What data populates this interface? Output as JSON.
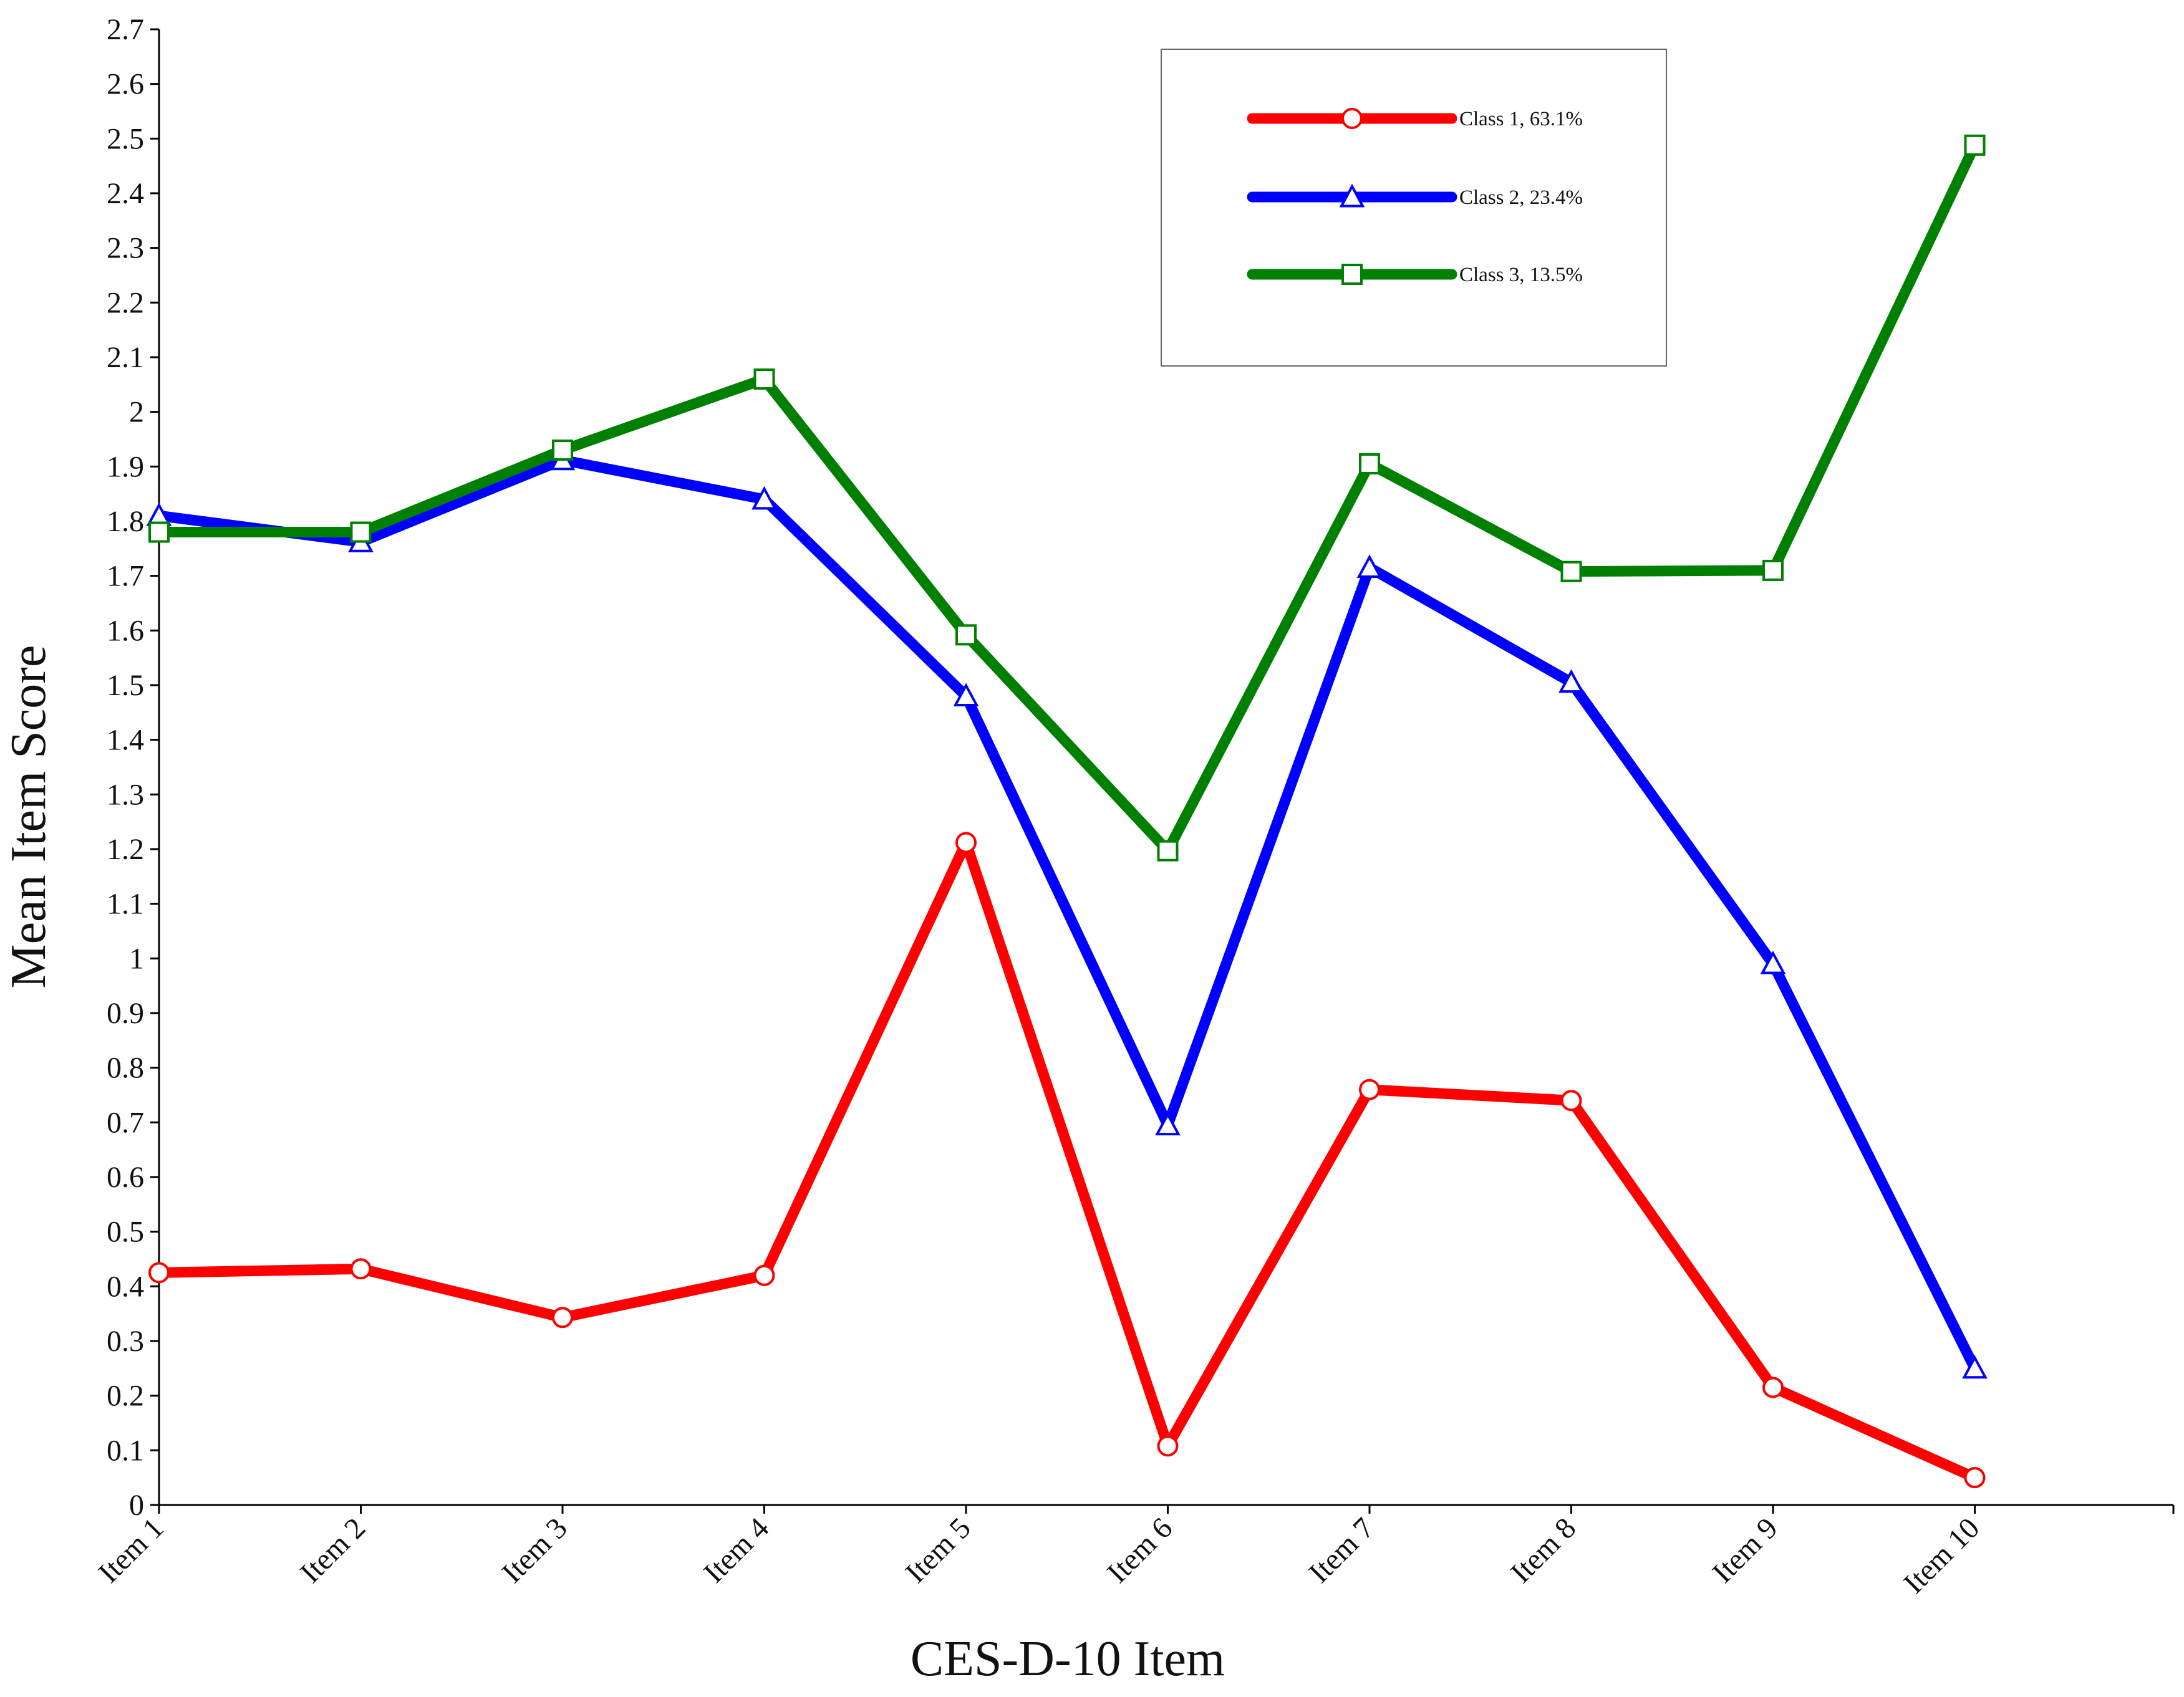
{
  "chart_data": {
    "type": "line",
    "title": "",
    "xlabel": "CES-D-10 Item",
    "ylabel": "Mean Item Score",
    "ylim": [
      0,
      2.7
    ],
    "y_ticks": [
      "0",
      "0.1",
      "0.2",
      "0.3",
      "0.4",
      "0.5",
      "0.6",
      "0.7",
      "0.8",
      "0.9",
      "1",
      "1.1",
      "1.2",
      "1.3",
      "1.4",
      "1.5",
      "1.6",
      "1.7",
      "1.8",
      "1.9",
      "2",
      "2.1",
      "2.2",
      "2.3",
      "2.4",
      "2.5",
      "2.6",
      "2.7"
    ],
    "categories": [
      "Item 1",
      "Item 2",
      "Item 3",
      "Item 4",
      "Item 5",
      "Item 6",
      "Item 7",
      "Item 8",
      "Item 9",
      "Item 10"
    ],
    "grid": false,
    "legend_position": "top-right",
    "series": [
      {
        "name": "Class 1, 63.1%",
        "color": "#ff0000",
        "marker": "circle",
        "values": [
          0.425,
          0.432,
          0.343,
          0.42,
          1.212,
          0.108,
          0.76,
          0.74,
          0.215,
          0.05
        ]
      },
      {
        "name": "Class 2, 23.4%",
        "color": "#0000ff",
        "marker": "triangle",
        "values": [
          1.81,
          1.762,
          1.912,
          1.84,
          1.48,
          0.695,
          1.715,
          1.505,
          0.99,
          0.25
        ]
      },
      {
        "name": "Class 3, 13.5%",
        "color": "#008000",
        "marker": "square",
        "values": [
          1.78,
          1.78,
          1.93,
          2.06,
          1.592,
          1.197,
          1.905,
          1.708,
          1.71,
          2.488
        ]
      }
    ]
  }
}
